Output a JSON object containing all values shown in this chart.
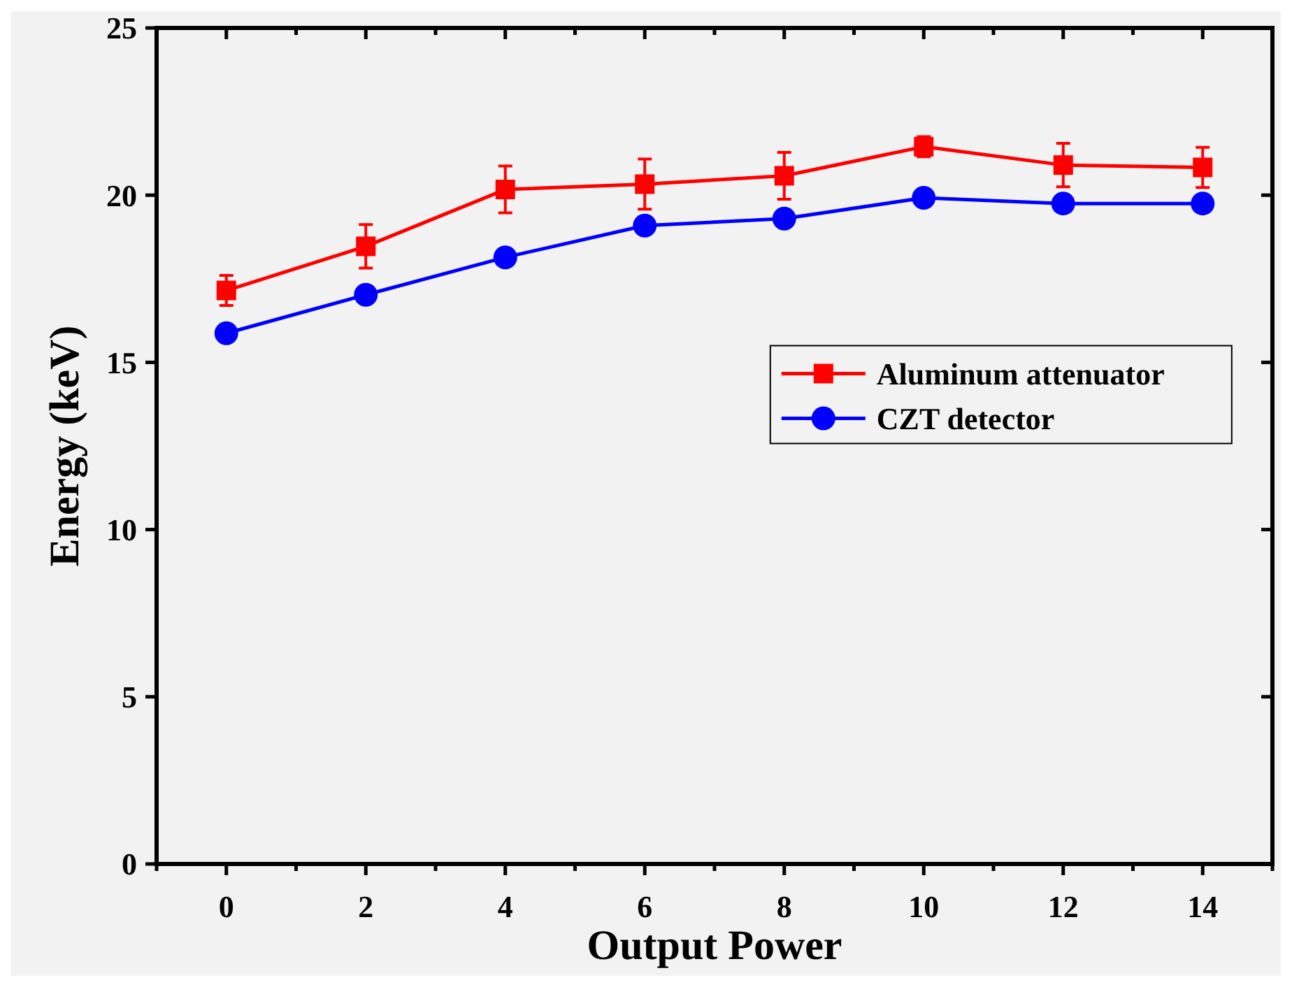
{
  "chart_data": {
    "type": "line",
    "xlabel": "Output Power",
    "ylabel": "Energy (keV)",
    "x": [
      0,
      2,
      4,
      6,
      8,
      10,
      12,
      14
    ],
    "xlim": [
      -1,
      15
    ],
    "xticks": [
      {
        "value": -1,
        "label": null
      },
      0,
      {
        "value": 1,
        "label": null
      },
      2,
      {
        "value": 3,
        "label": null
      },
      4,
      {
        "value": 5,
        "label": null
      },
      6,
      {
        "value": 7,
        "label": null
      },
      8,
      {
        "value": 9,
        "label": null
      },
      10,
      {
        "value": 11,
        "label": null
      },
      12,
      {
        "value": 13,
        "label": null
      },
      14,
      {
        "value": 15,
        "label": null
      }
    ],
    "ylim": [
      0,
      25
    ],
    "yticks": [
      0,
      5,
      10,
      15,
      20,
      25
    ],
    "series": [
      {
        "name": "Aluminum attenuator",
        "color": "#ff0000",
        "marker": "square",
        "values": [
          17.15,
          18.47,
          20.17,
          20.33,
          20.58,
          21.45,
          20.9,
          20.83
        ],
        "errors": [
          0.45,
          0.65,
          0.7,
          0.75,
          0.7,
          0.3,
          0.65,
          0.6
        ]
      },
      {
        "name": "CZT detector",
        "color": "#0000ff",
        "marker": "circle",
        "values": [
          15.87,
          17.02,
          18.14,
          19.09,
          19.3,
          19.92,
          19.75,
          19.75
        ]
      }
    ],
    "legend": "right",
    "grid": false
  }
}
